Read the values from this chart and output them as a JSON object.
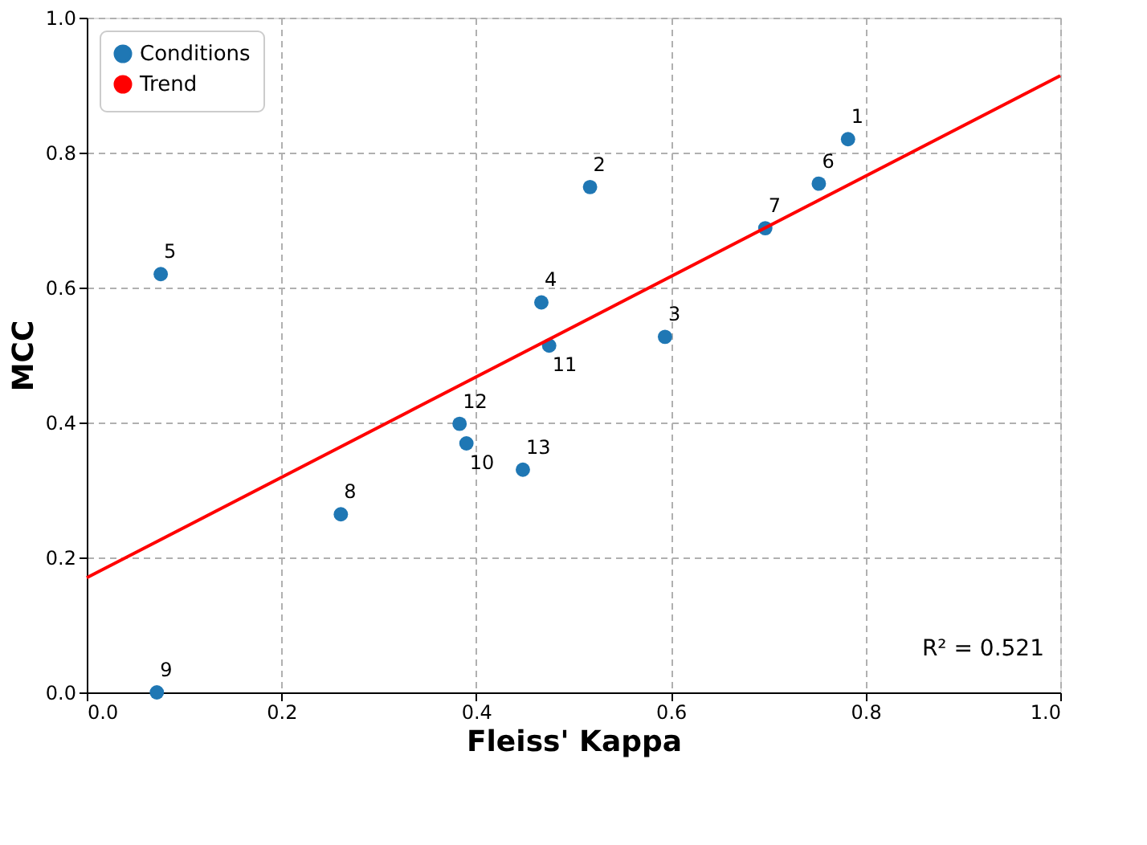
{
  "chart_data": {
    "type": "scatter",
    "xlabel": "Fleiss' Kappa",
    "ylabel": "MCC",
    "xlim": [
      0,
      1
    ],
    "ylim": [
      0,
      1
    ],
    "xticks": [
      {
        "value": 0,
        "label": "0.0"
      },
      0.2,
      0.4,
      0.6,
      0.8,
      {
        "value": 1,
        "label": "1.0"
      }
    ],
    "yticks": [
      {
        "value": 0,
        "label": "0.0"
      },
      0.2,
      0.4,
      0.6,
      0.8,
      {
        "value": 1,
        "label": "1.0"
      }
    ],
    "grid": true,
    "legend": "top left",
    "series": [
      {
        "name": "Conditions",
        "marker": "circle",
        "color": "#1f77b4",
        "x": [
          0.782,
          0.517,
          0.594,
          0.467,
          0.076,
          0.752,
          0.697,
          0.261,
          0.072,
          0.39,
          0.475,
          0.383,
          0.448
        ],
        "values": [
          0.82,
          0.749,
          0.527,
          0.578,
          0.62,
          0.754,
          0.688,
          0.264,
          0.0,
          0.369,
          0.514,
          0.398,
          0.33
        ]
      },
      {
        "name": "Trend",
        "type": "line",
        "color": "#ff0000",
        "line_style": "solid",
        "x": [
          0,
          1
        ],
        "values": [
          0.17,
          0.914
        ]
      }
    ],
    "annotations": [
      {
        "text": "1",
        "x": 0.782,
        "y": 0.82
      },
      {
        "text": "2",
        "x": 0.517,
        "y": 0.749
      },
      {
        "text": "3",
        "x": 0.594,
        "y": 0.527
      },
      {
        "text": "4",
        "x": 0.467,
        "y": 0.578
      },
      {
        "text": "5",
        "x": 0.076,
        "y": 0.62
      },
      {
        "text": "6",
        "x": 0.752,
        "y": 0.754
      },
      {
        "text": "7",
        "x": 0.697,
        "y": 0.688
      },
      {
        "text": "8",
        "x": 0.261,
        "y": 0.264
      },
      {
        "text": "9",
        "x": 0.072,
        "y": 0.0
      },
      {
        "text": "10",
        "x": 0.39,
        "y": 0.369
      },
      {
        "text": "11",
        "x": 0.475,
        "y": 0.514
      },
      {
        "text": "12",
        "x": 0.383,
        "y": 0.398
      },
      {
        "text": "13",
        "x": 0.448,
        "y": 0.33
      },
      "R² = 0.521"
    ]
  }
}
